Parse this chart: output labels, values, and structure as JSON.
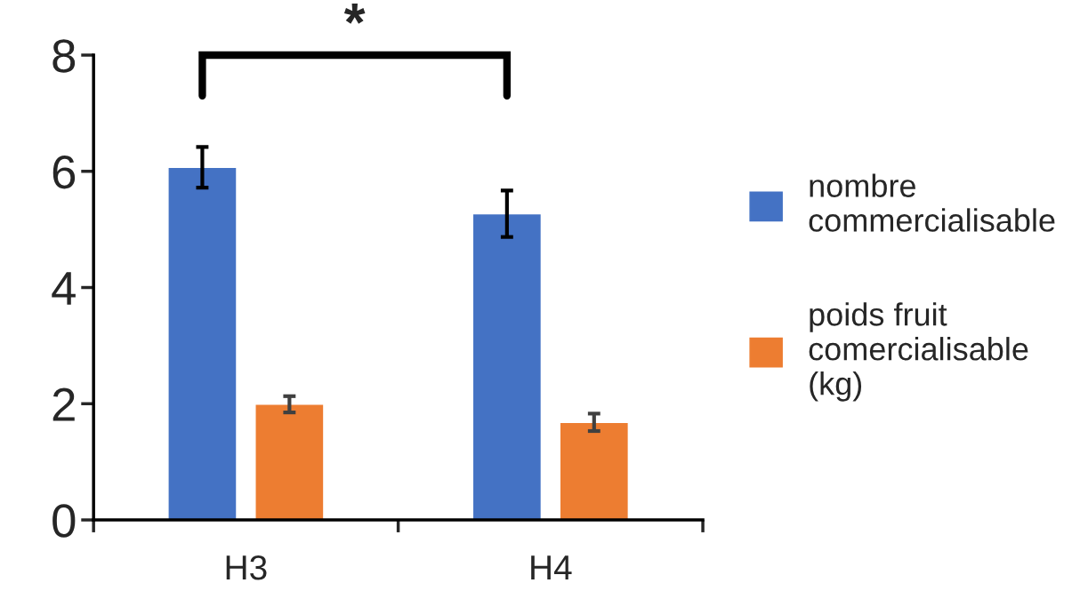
{
  "chart_data": {
    "type": "bar",
    "categories": [
      "H3",
      "H4"
    ],
    "series": [
      {
        "name": "nombre commercialisable",
        "color": "#4472c4",
        "values": [
          6.07,
          5.27
        ],
        "errors": [
          0.35,
          0.4
        ]
      },
      {
        "name": "poids fruit comercialisable (kg)",
        "color": "#ed7d31",
        "values": [
          1.99,
          1.68
        ],
        "errors": [
          0.14,
          0.15
        ]
      }
    ],
    "ylim": [
      0,
      8
    ],
    "yticks": [
      0,
      2,
      4,
      6,
      8
    ],
    "annotations": [
      "*"
    ],
    "grid": false,
    "legend": "right"
  }
}
